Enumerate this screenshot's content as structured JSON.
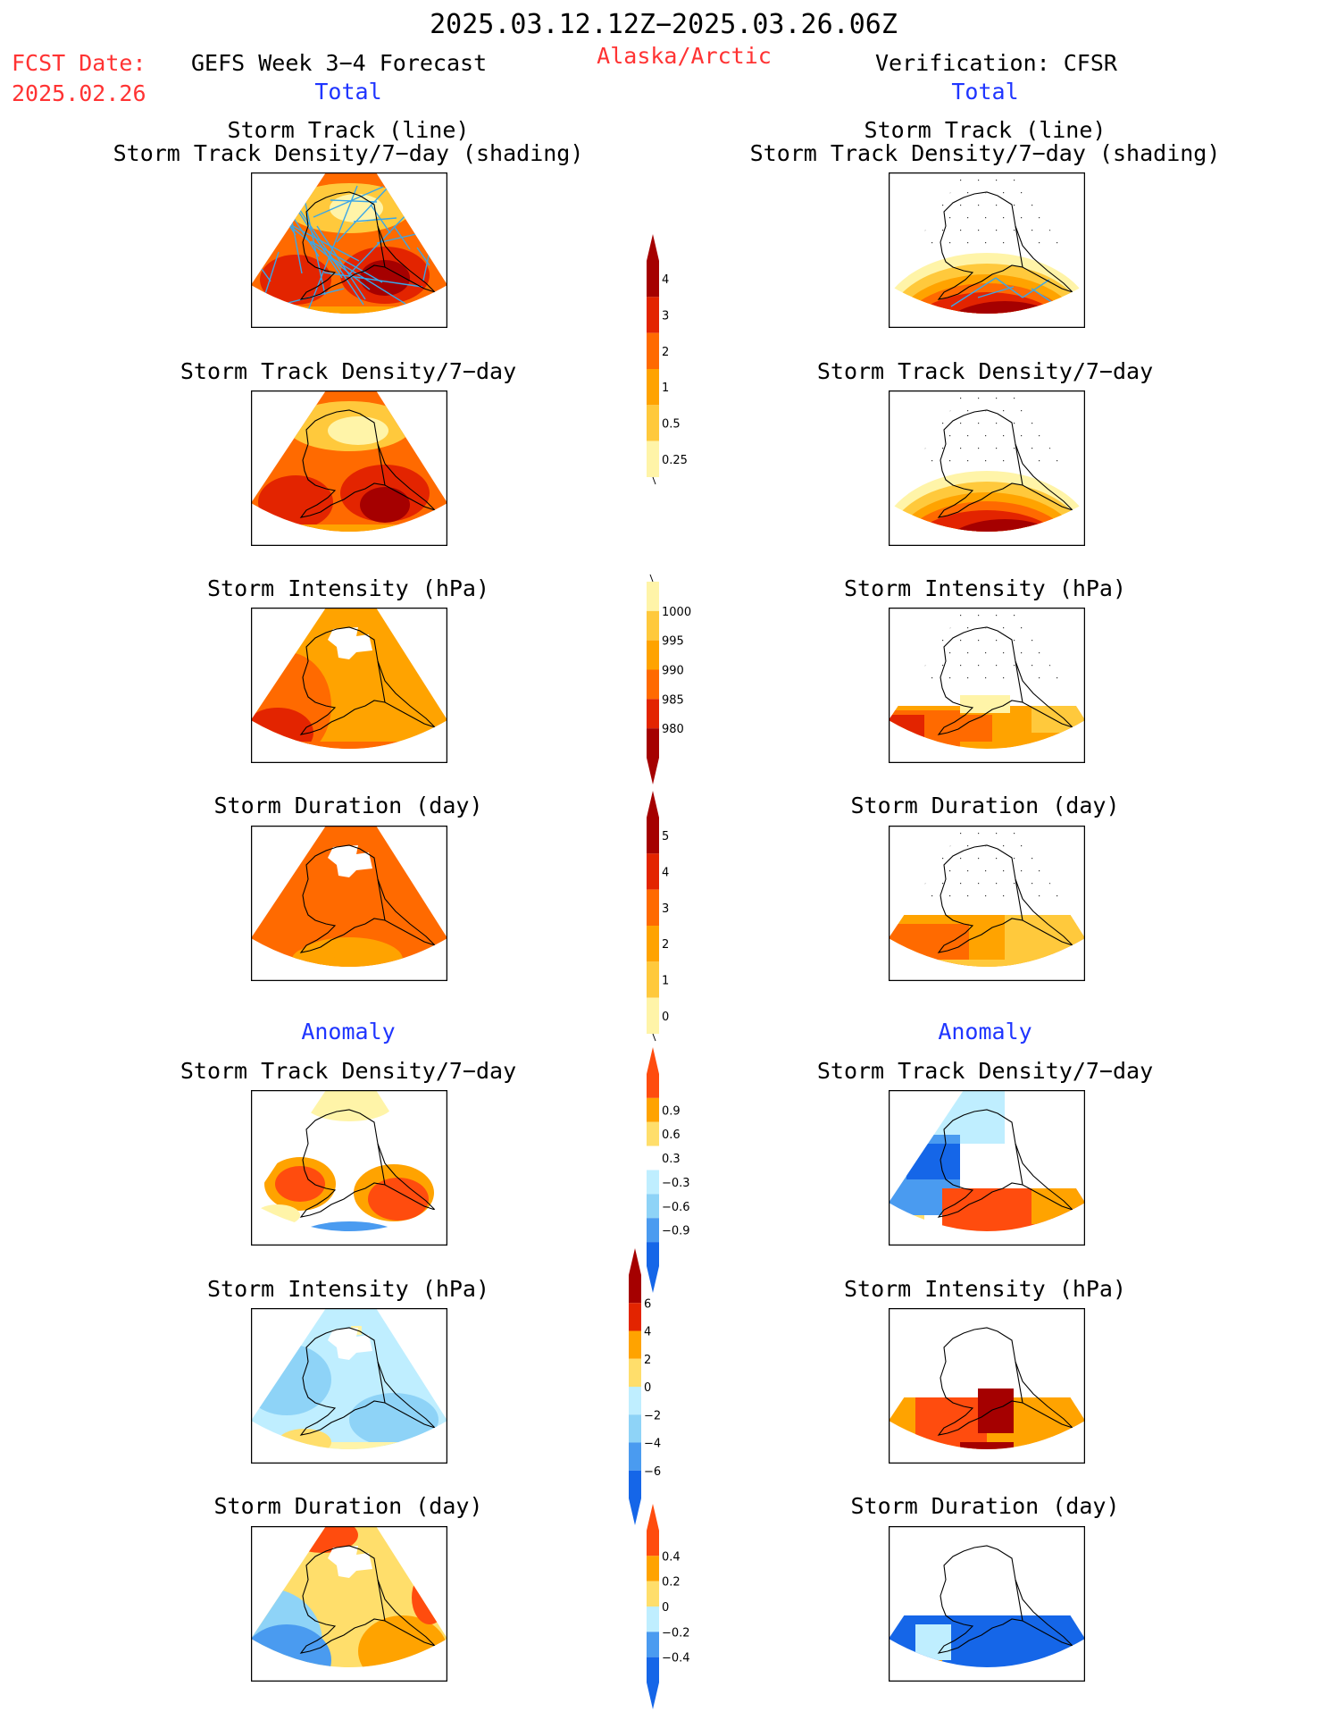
{
  "header": {
    "date_range": "2025.03.12.12Z−2025.03.26.06Z",
    "fcst_label": "FCST Date:",
    "fcst_date": "2025.02.26",
    "model_title": "GEFS Week 3−4 Forecast",
    "region": "Alaska/Arctic",
    "verification": "Verification: CFSR",
    "left_section": "Total",
    "right_section": "Total"
  },
  "sections": {
    "anomaly_left": "Anomaly",
    "anomaly_right": "Anomaly"
  },
  "panel_titles": {
    "track_line": "Storm Track (line)",
    "track_shading": "Storm Track Density/7−day (shading)",
    "density": "Storm Track Density/7−day",
    "intensity": "Storm Intensity (hPa)",
    "duration": "Storm Duration (day)"
  },
  "colors": {
    "title_red": "#ff3333",
    "section_blue": "#1f35ff",
    "track_line": "#3aa6e8"
  },
  "colorbars": [
    {
      "id": "density_total",
      "labels": [
        "4",
        "3",
        "2",
        "1",
        "0.5",
        "0.25"
      ],
      "colors": [
        "#a50000",
        "#e32400",
        "#ff6a00",
        "#ffa300",
        "#ffc93c",
        "#fff4a8"
      ],
      "top_arrow": true,
      "bottom_arrow": false
    },
    {
      "id": "intensity_total",
      "labels": [
        "1000",
        "995",
        "990",
        "985",
        "980"
      ],
      "colors": [
        "#fff4a8",
        "#ffc93c",
        "#ffa300",
        "#ff6a00",
        "#e32400",
        "#a50000"
      ],
      "top_arrow": false,
      "bottom_arrow": true
    },
    {
      "id": "duration_total",
      "labels": [
        "5",
        "4",
        "3",
        "2",
        "1",
        "0"
      ],
      "colors": [
        "#a50000",
        "#e32400",
        "#ff6a00",
        "#ffa300",
        "#ffc93c",
        "#fff4a8"
      ],
      "top_arrow": true,
      "bottom_arrow": false
    },
    {
      "id": "density_anom",
      "labels": [
        "0.9",
        "0.6",
        "0.3",
        "−0.3",
        "−0.6",
        "−0.9"
      ],
      "colors": [
        "#ff4c0e",
        "#ffa300",
        "#ffde6b",
        "#ffffff",
        "#bfeeff",
        "#8ed3f7",
        "#4a9bf0",
        "#1566e8"
      ],
      "top_arrow": true,
      "bottom_arrow": true
    },
    {
      "id": "intensity_anom",
      "labels": [
        "6",
        "4",
        "2",
        "0",
        "−2",
        "−4",
        "−6"
      ],
      "colors": [
        "#a50000",
        "#e32400",
        "#ffa300",
        "#ffde6b",
        "#bfeeff",
        "#8ed3f7",
        "#4a9bf0",
        "#1566e8"
      ],
      "top_arrow": true,
      "bottom_arrow": true
    },
    {
      "id": "duration_anom",
      "labels": [
        "0.4",
        "0.2",
        "0",
        "−0.2",
        "−0.4"
      ],
      "colors": [
        "#ff4c0e",
        "#ffa300",
        "#ffde6b",
        "#bfeeff",
        "#4a9bf0",
        "#1566e8"
      ],
      "top_arrow": true,
      "bottom_arrow": true
    }
  ]
}
